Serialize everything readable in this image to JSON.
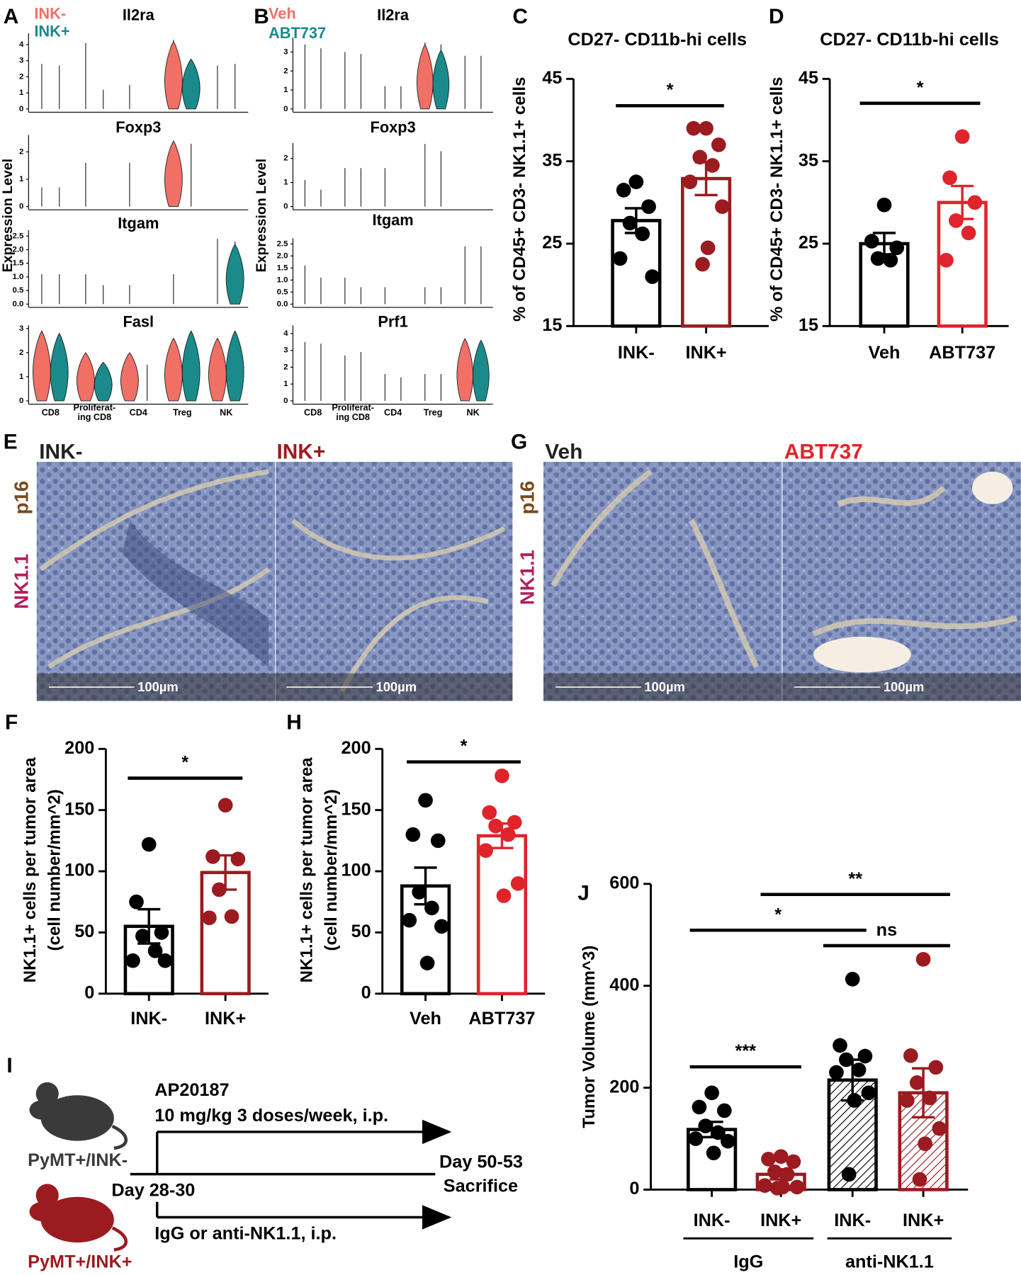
{
  "chart_data": [
    {
      "type": "violin",
      "label": "A",
      "ylabel": "Expression Level",
      "series": [
        {
          "name": "INK-",
          "color": "#f07066"
        },
        {
          "name": "INK+",
          "color": "#1a8a8a"
        }
      ],
      "categories": [
        "CD8",
        "Proliferat-\ning CD8",
        "CD4",
        "Treg",
        "NK"
      ],
      "genes": [
        {
          "name": "Il2ra",
          "ylim": [
            0,
            4.5
          ],
          "yticks": [
            0,
            1,
            2,
            3,
            4
          ],
          "values": [
            [
              2.8,
              4.1,
              1.5,
              4.3,
              2.7
            ],
            [
              2.7,
              1.2,
              0,
              3.1,
              2.8
            ]
          ],
          "body": [
            [
              0,
              0,
              0,
              4.2,
              0
            ],
            [
              0,
              0,
              0,
              3.1,
              0
            ]
          ]
        },
        {
          "name": "Foxp3",
          "ylim": [
            0,
            2.5
          ],
          "yticks": [
            0,
            1,
            2
          ],
          "values": [
            [
              0.7,
              1.6,
              1.6,
              2.4,
              0
            ],
            [
              0.7,
              0,
              0,
              2.3,
              0
            ]
          ],
          "body": [
            [
              0,
              0,
              0,
              2.4,
              0
            ],
            [
              0,
              0,
              0,
              0,
              0
            ]
          ]
        },
        {
          "name": "Itgam",
          "ylim": [
            0,
            2.6
          ],
          "yticks": [
            {
              "value": 0,
              "label": "0.0"
            },
            {
              "value": 0.5,
              "label": "0.5"
            },
            {
              "value": 1,
              "label": "1.0"
            },
            {
              "value": 1.5,
              "label": "1.5"
            },
            {
              "value": 2,
              "label": "2.0"
            },
            {
              "value": 2.5,
              "label": "2.5"
            }
          ],
          "values": [
            [
              1.1,
              1.1,
              0.7,
              1.1,
              2.4
            ],
            [
              1.1,
              0.7,
              0,
              0,
              2.3
            ]
          ],
          "body": [
            [
              0,
              0,
              0,
              0,
              0
            ],
            [
              0,
              0,
              0,
              0,
              2.2
            ]
          ]
        },
        {
          "name": "Fasl",
          "ylim": [
            0,
            3
          ],
          "yticks": [
            0,
            1,
            2,
            3
          ],
          "values": [
            [
              2.9,
              2.0,
              2.0,
              2.6,
              2.6
            ],
            [
              2.8,
              1.6,
              1.5,
              2.9,
              2.9
            ]
          ],
          "body": [
            [
              2.9,
              2.0,
              2.0,
              2.6,
              2.6
            ],
            [
              2.8,
              1.6,
              0,
              2.9,
              2.9
            ]
          ]
        }
      ]
    },
    {
      "type": "violin",
      "label": "B",
      "ylabel": "Expression Level",
      "series": [
        {
          "name": "Veh",
          "color": "#f07066"
        },
        {
          "name": "ABT737",
          "color": "#1a8a8a"
        }
      ],
      "categories": [
        "CD8",
        "Proliferat-\ning CD8",
        "CD4",
        "Treg",
        "NK"
      ],
      "genes": [
        {
          "name": "Il2ra",
          "ylim": [
            0,
            3.6
          ],
          "yticks": [
            0,
            1,
            2,
            3
          ],
          "values": [
            [
              3.4,
              3.0,
              1.2,
              3.5,
              2.8
            ],
            [
              3.2,
              2.9,
              1.2,
              3.4,
              2.8
            ]
          ],
          "body": [
            [
              0,
              0,
              0,
              3.4,
              0
            ],
            [
              0,
              0,
              0,
              3.1,
              0
            ]
          ]
        },
        {
          "name": "Foxp3",
          "ylim": [
            0,
            2.5
          ],
          "yticks": [
            0,
            1,
            2
          ],
          "values": [
            [
              1.1,
              1.6,
              1.6,
              2.6,
              0
            ],
            [
              0.7,
              1.6,
              0,
              2.3,
              0
            ]
          ],
          "body": [
            [
              0,
              0,
              0,
              0,
              0
            ],
            [
              0,
              0,
              0,
              0,
              0
            ]
          ]
        },
        {
          "name": "Itgam",
          "ylim": [
            0,
            2.6
          ],
          "yticks": [
            {
              "value": 0,
              "label": "0.0"
            },
            {
              "value": 0.5,
              "label": "0.5"
            },
            {
              "value": 1,
              "label": "1.0"
            },
            {
              "value": 1.5,
              "label": "1.5"
            },
            {
              "value": 2,
              "label": "2.0"
            },
            {
              "value": 2.5,
              "label": "2.5"
            }
          ],
          "values": [
            [
              1.6,
              1.1,
              0.7,
              0.7,
              2.4
            ],
            [
              1.1,
              0.7,
              0,
              0.7,
              2.4
            ]
          ],
          "body": [
            [
              0,
              0,
              0,
              0,
              0
            ],
            [
              0,
              0,
              0,
              0,
              0
            ]
          ]
        },
        {
          "name": "Prf1",
          "ylim": [
            0,
            4.3
          ],
          "yticks": [
            0,
            1,
            2,
            3,
            4
          ],
          "values": [
            [
              3.5,
              2.7,
              1.6,
              1.6,
              3.7
            ],
            [
              3.4,
              2.9,
              1.4,
              1.6,
              3.6
            ]
          ],
          "body": [
            [
              0,
              0,
              0,
              0,
              3.7
            ],
            [
              0,
              0,
              0,
              0,
              3.6
            ]
          ]
        }
      ]
    },
    {
      "type": "bar",
      "label": "C",
      "title": "CD27- CD11b-hi  cells",
      "ylabel": [
        "% of CD45+ CD3- NK1.1+ cells"
      ],
      "ylim": [
        15,
        45
      ],
      "yticks": [
        15,
        25,
        35,
        45
      ],
      "categories": [
        "INK-",
        "INK+"
      ],
      "colors": [
        "#000000",
        "#9b1b20"
      ],
      "hatched": [
        false,
        false
      ],
      "values": [
        27.8,
        32.9
      ],
      "errors": [
        1.5,
        2.0
      ],
      "points": [
        [
          32.5,
          31.5,
          29.5,
          27.5,
          26.2,
          23.2,
          21.0
        ],
        [
          39.0,
          39.0,
          37.0,
          35.5,
          34.5,
          32.5,
          29.5,
          24.5,
          22.5
        ]
      ],
      "significance": [
        "*"
      ]
    },
    {
      "type": "bar",
      "label": "D",
      "title": "CD27- CD11b-hi  cells",
      "ylabel": [
        "% of CD45+ CD3- NK1.1+ cells"
      ],
      "ylim": [
        15,
        45
      ],
      "yticks": [
        15,
        25,
        35,
        45
      ],
      "categories": [
        "Veh",
        "ABT737"
      ],
      "colors": [
        "#000000",
        "#e0242b"
      ],
      "hatched": [
        false,
        false
      ],
      "values": [
        25.0,
        30.0
      ],
      "errors": [
        1.3,
        2.0
      ],
      "points": [
        [
          29.7,
          25.3,
          24.5,
          23.2,
          23.0
        ],
        [
          38.0,
          33.0,
          30.0,
          27.8,
          26.3,
          23.0
        ]
      ],
      "significance": [
        "*"
      ]
    },
    {
      "type": "bar",
      "label": "F",
      "ylabel": [
        "NK1.1+ cells per tumor area",
        "(cell number/mm^2)"
      ],
      "ylim": [
        0,
        200
      ],
      "yticks": [
        0,
        50,
        100,
        150,
        200
      ],
      "categories": [
        "INK-",
        "INK+"
      ],
      "colors": [
        "#000000",
        "#9b1b20"
      ],
      "hatched": [
        false,
        false
      ],
      "values": [
        55,
        99
      ],
      "errors": [
        14,
        14
      ],
      "points": [
        [
          122,
          75,
          50,
          47,
          35,
          27,
          27
        ],
        [
          154,
          112,
          110,
          85,
          63,
          62
        ]
      ],
      "significance": [
        "*"
      ]
    },
    {
      "type": "bar",
      "label": "H",
      "ylabel": [
        "NK1.1+ cells per tumor area",
        "(cell number/mm^2)"
      ],
      "ylim": [
        0,
        200
      ],
      "yticks": [
        0,
        50,
        100,
        150,
        200
      ],
      "categories": [
        "Veh",
        "ABT737"
      ],
      "colors": [
        "#000000",
        "#e0242b"
      ],
      "hatched": [
        false,
        false
      ],
      "values": [
        88,
        129
      ],
      "errors": [
        15,
        10
      ],
      "points": [
        [
          158,
          130,
          125,
          83,
          70,
          60,
          55,
          25
        ],
        [
          178,
          148,
          140,
          137,
          130,
          117,
          90,
          80
        ]
      ],
      "significance": [
        "*"
      ]
    },
    {
      "type": "bar",
      "label": "J",
      "ylabel": [
        "Tumor Volume (mm^3)"
      ],
      "ylim": [
        0,
        600
      ],
      "yticks": [
        0,
        200,
        400,
        600
      ],
      "categories": [
        "INK-",
        "INK+",
        "INK-",
        "INK+"
      ],
      "groups": [
        "IgG",
        "anti-NK1.1"
      ],
      "colors": [
        "#000000",
        "#9b1b20",
        "#000000",
        "#9b1b20"
      ],
      "hatched": [
        false,
        false,
        true,
        true
      ],
      "values": [
        118,
        30,
        215,
        190
      ],
      "errors": [
        15,
        10,
        40,
        48
      ],
      "points": [
        [
          190,
          162,
          155,
          125,
          112,
          100,
          95,
          72
        ],
        [
          65,
          60,
          55,
          35,
          30,
          8,
          5,
          5,
          3
        ],
        [
          413,
          283,
          262,
          255,
          235,
          230,
          190,
          175,
          30
        ],
        [
          452,
          263,
          240,
          210,
          180,
          175,
          120,
          90,
          20
        ]
      ],
      "significance": [
        "**",
        "*",
        "ns",
        "***"
      ]
    }
  ],
  "images": [
    {
      "label": "E",
      "stains": [
        {
          "name": "p16",
          "color": "#7a4a1a"
        },
        {
          "name": "NK1.1",
          "color": "#b0205a"
        }
      ],
      "panels": [
        {
          "title": "INK-",
          "color": "#222222",
          "scale_bar": "100µm"
        },
        {
          "title": "INK+",
          "color": "#9b1b20",
          "scale_bar": "100µm"
        }
      ]
    },
    {
      "label": "G",
      "stains": [
        {
          "name": "p16",
          "color": "#7a4a1a"
        },
        {
          "name": "NK1.1",
          "color": "#b0205a"
        }
      ],
      "panels": [
        {
          "title": "Veh",
          "color": "#222222",
          "scale_bar": "100µm"
        },
        {
          "title": "ABT737",
          "color": "#e0242b",
          "scale_bar": "100µm"
        }
      ]
    }
  ],
  "diagram": {
    "label": "I",
    "groups": [
      {
        "name": "PyMT+/INK-",
        "color": "#3a3a3a"
      },
      {
        "name": "PyMT+/INK+",
        "color": "#9b1b20"
      }
    ],
    "treatment_top": [
      "AP20187",
      "10 mg/kg 3 doses/week, i.p."
    ],
    "start": "Day 28-30",
    "end": [
      "Day 50-53",
      "Sacrifice"
    ],
    "treatment_bottom": "IgG or anti-NK1.1, i.p."
  }
}
